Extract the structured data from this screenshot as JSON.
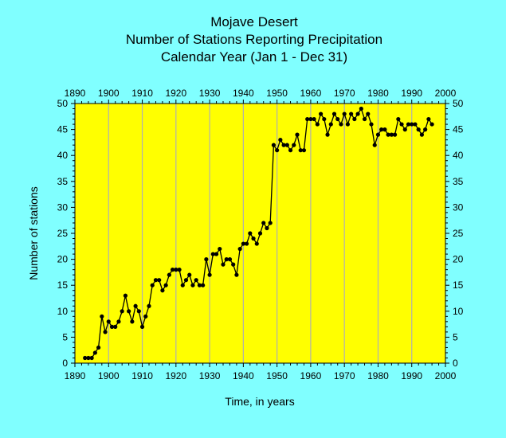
{
  "chart_data": {
    "type": "line",
    "title": [
      "Mojave Desert",
      "Number of Stations Reporting Precipitation",
      "Calendar Year (Jan 1 - Dec 31)"
    ],
    "xlabel": "Time, in years",
    "ylabel": "Number of stations",
    "xlim": [
      1890,
      2000
    ],
    "ylim": [
      0,
      50
    ],
    "x_ticks": [
      1890,
      1900,
      1910,
      1920,
      1930,
      1940,
      1950,
      1960,
      1970,
      1980,
      1990,
      2000
    ],
    "y_ticks": [
      0,
      5,
      10,
      15,
      20,
      25,
      30,
      35,
      40,
      45,
      50
    ],
    "grid": "vertical",
    "colors": {
      "plot_background": "#ffff00",
      "page_background": "#80ffff",
      "grid": "#b0b0b0",
      "series": "#000000"
    },
    "series": [
      {
        "x": [
          1893,
          1894,
          1895,
          1896,
          1897,
          1898,
          1899,
          1900,
          1901,
          1902,
          1903,
          1904,
          1905,
          1906,
          1907,
          1908,
          1909,
          1910,
          1911,
          1912,
          1913,
          1914,
          1915,
          1916,
          1917,
          1918,
          1919,
          1920,
          1921,
          1922,
          1923,
          1924,
          1925,
          1926,
          1927,
          1928,
          1929,
          1930,
          1931,
          1932,
          1933,
          1934,
          1935,
          1936,
          1937,
          1938,
          1939,
          1940,
          1941,
          1942,
          1943,
          1944,
          1945,
          1946,
          1947,
          1948,
          1949,
          1950,
          1951,
          1952,
          1953,
          1954,
          1955,
          1956,
          1957,
          1958,
          1959,
          1960,
          1961,
          1962,
          1963,
          1964,
          1965,
          1966,
          1967,
          1968,
          1969,
          1970,
          1971,
          1972,
          1973,
          1974,
          1975,
          1976,
          1977,
          1978,
          1979,
          1980,
          1981,
          1982,
          1983,
          1984,
          1985,
          1986,
          1987,
          1988,
          1989,
          1990,
          1991,
          1992,
          1993,
          1994,
          1995,
          1996
        ],
        "y": [
          1,
          1,
          1,
          2,
          3,
          9,
          6,
          8,
          7,
          7,
          8,
          10,
          13,
          10,
          8,
          11,
          10,
          7,
          9,
          11,
          15,
          16,
          16,
          14,
          15,
          17,
          18,
          18,
          18,
          15,
          16,
          17,
          15,
          16,
          15,
          15,
          20,
          17,
          21,
          21,
          22,
          19,
          20,
          20,
          19,
          17,
          22,
          23,
          23,
          25,
          24,
          23,
          25,
          27,
          26,
          27,
          42,
          41,
          43,
          42,
          42,
          41,
          42,
          44,
          41,
          41,
          47,
          47,
          47,
          46,
          48,
          47,
          44,
          46,
          48,
          47,
          46,
          48,
          46,
          48,
          47,
          48,
          49,
          47,
          48,
          46,
          42,
          44,
          45,
          45,
          44,
          44,
          44,
          47,
          46,
          45,
          46,
          46,
          46,
          45,
          44,
          45,
          47,
          46
        ]
      }
    ]
  }
}
